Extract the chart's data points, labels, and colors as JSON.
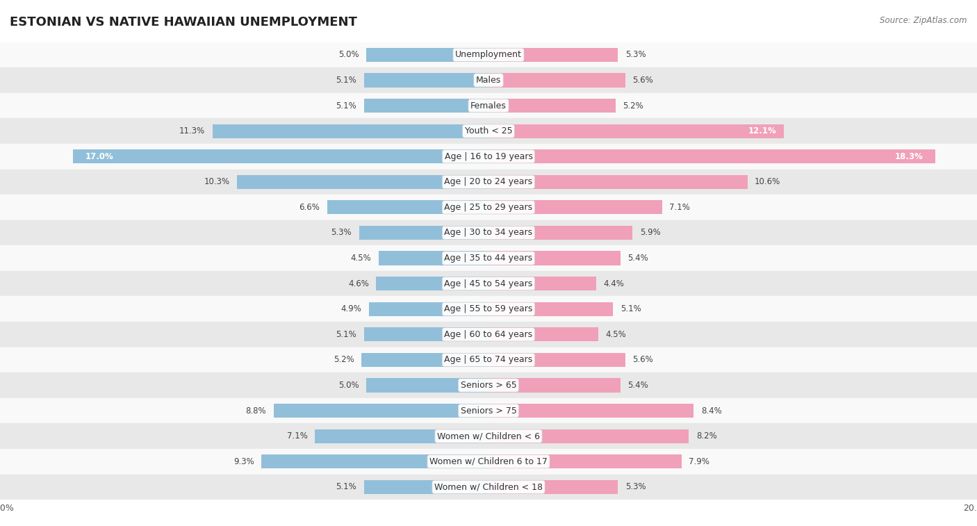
{
  "title": "ESTONIAN VS NATIVE HAWAIIAN UNEMPLOYMENT",
  "source": "Source: ZipAtlas.com",
  "categories": [
    "Unemployment",
    "Males",
    "Females",
    "Youth < 25",
    "Age | 16 to 19 years",
    "Age | 20 to 24 years",
    "Age | 25 to 29 years",
    "Age | 30 to 34 years",
    "Age | 35 to 44 years",
    "Age | 45 to 54 years",
    "Age | 55 to 59 years",
    "Age | 60 to 64 years",
    "Age | 65 to 74 years",
    "Seniors > 65",
    "Seniors > 75",
    "Women w/ Children < 6",
    "Women w/ Children 6 to 17",
    "Women w/ Children < 18"
  ],
  "estonian": [
    5.0,
    5.1,
    5.1,
    11.3,
    17.0,
    10.3,
    6.6,
    5.3,
    4.5,
    4.6,
    4.9,
    5.1,
    5.2,
    5.0,
    8.8,
    7.1,
    9.3,
    5.1
  ],
  "native_hawaiian": [
    5.3,
    5.6,
    5.2,
    12.1,
    18.3,
    10.6,
    7.1,
    5.9,
    5.4,
    4.4,
    5.1,
    4.5,
    5.6,
    5.4,
    8.4,
    8.2,
    7.9,
    5.3
  ],
  "estonian_color": "#91bfda",
  "native_hawaiian_color": "#f0a0b8",
  "estonian_color_dark": "#5a9fc0",
  "native_hawaiian_color_dark": "#e06090",
  "xlim": 20.0,
  "background_color": "#f0f0f0",
  "row_color_odd": "#f9f9f9",
  "row_color_even": "#e8e8e8",
  "title_fontsize": 13,
  "label_fontsize": 9,
  "value_fontsize": 8.5,
  "legend_fontsize": 10
}
